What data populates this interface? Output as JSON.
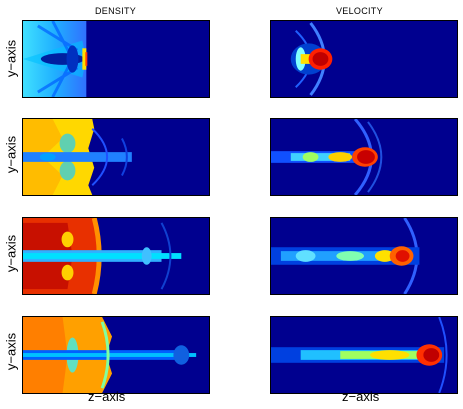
{
  "columns": {
    "density_title": "DENSITY",
    "velocity_title": "VELOCITY"
  },
  "axes": {
    "y_label": "y−axis",
    "x_label": "z−axis"
  },
  "colormap": [
    "#00008f",
    "#0000ff",
    "#00ffff",
    "#ffff00",
    "#ff0000",
    "#800000"
  ]
}
